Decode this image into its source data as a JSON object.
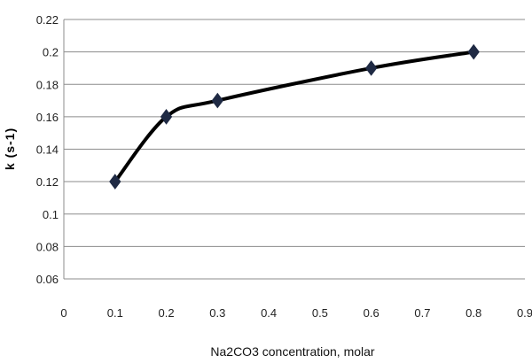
{
  "chart_data": {
    "type": "line",
    "title": "",
    "xlabel": "Na2CO3 concentration, molar",
    "ylabel": "k (s-1)",
    "xlim": [
      0,
      0.9
    ],
    "ylim": [
      0.06,
      0.22
    ],
    "x_ticks": [
      "0",
      "0.1",
      "0.2",
      "0.3",
      "0.4",
      "0.5",
      "0.6",
      "0.7",
      "0.8",
      "0.9"
    ],
    "y_ticks": [
      "0.06",
      "0.08",
      "0.1",
      "0.12",
      "0.14",
      "0.16",
      "0.18",
      "0.2",
      "0.22"
    ],
    "grid": "horizontal",
    "legend": "none",
    "line_color": "#000000",
    "marker": "diamond",
    "marker_color": "#1f2a44",
    "series": [
      {
        "x": [
          0.1,
          0.2,
          0.3,
          0.6,
          0.8
        ],
        "values": [
          0.12,
          0.16,
          0.17,
          0.19,
          0.2
        ]
      }
    ]
  }
}
